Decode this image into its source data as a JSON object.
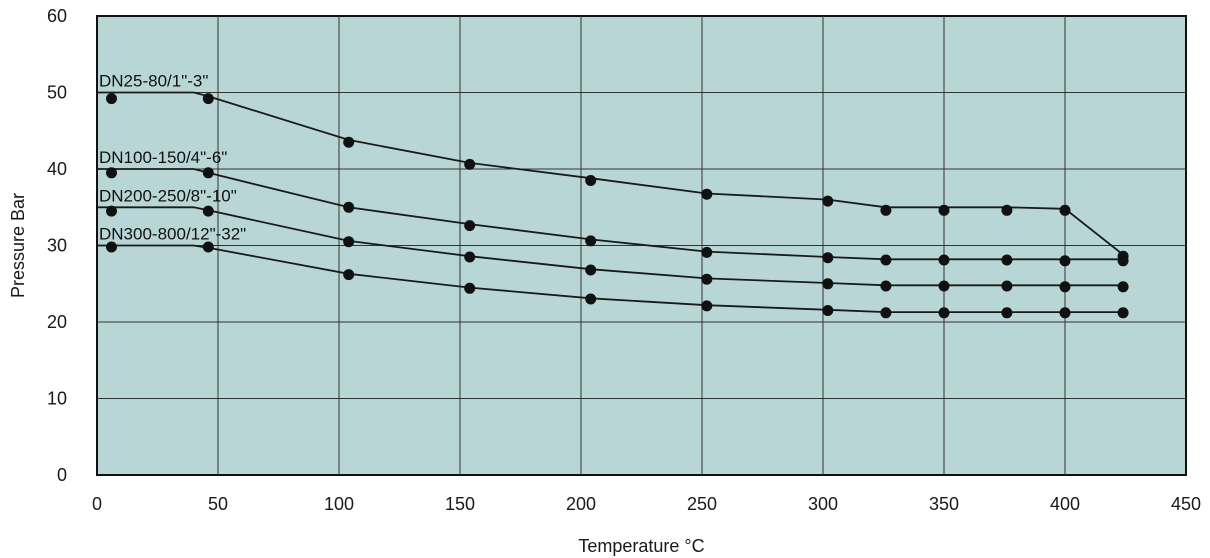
{
  "chart_data": {
    "type": "line",
    "title": "",
    "xlabel": "Temperature °C",
    "ylabel": "Pressure Bar",
    "xlim": [
      0,
      450
    ],
    "ylim": [
      0,
      60
    ],
    "xticks": [
      0,
      50,
      100,
      150,
      200,
      250,
      300,
      350,
      400,
      450
    ],
    "yticks": [
      0,
      10,
      20,
      30,
      40,
      50,
      60
    ],
    "grid": true,
    "plot_background": "#b8d6d6",
    "series": [
      {
        "name": "DN25-80/1\"-3\"",
        "line": [
          [
            0,
            50
          ],
          [
            40,
            50
          ],
          [
            46,
            49.5
          ],
          [
            104,
            43.8
          ],
          [
            154,
            40.8
          ],
          [
            204,
            38.8
          ],
          [
            252,
            36.8
          ],
          [
            302,
            36
          ],
          [
            326,
            35
          ],
          [
            350,
            35
          ],
          [
            376,
            35
          ],
          [
            400,
            34.8
          ],
          [
            424,
            28.8
          ]
        ],
        "points": [
          [
            6,
            49.2
          ],
          [
            46,
            49.2
          ],
          [
            104,
            43.5
          ],
          [
            154,
            40.6
          ],
          [
            204,
            38.5
          ],
          [
            252,
            36.7
          ],
          [
            302,
            35.8
          ],
          [
            326,
            34.6
          ],
          [
            350,
            34.6
          ],
          [
            376,
            34.6
          ],
          [
            400,
            34.6
          ],
          [
            424,
            28.6
          ]
        ]
      },
      {
        "name": "DN100-150/4\"-6\"",
        "line": [
          [
            0,
            40
          ],
          [
            40,
            40
          ],
          [
            46,
            39.5
          ],
          [
            104,
            35
          ],
          [
            154,
            32.8
          ],
          [
            204,
            30.8
          ],
          [
            252,
            29.2
          ],
          [
            302,
            28.5
          ],
          [
            326,
            28.2
          ],
          [
            350,
            28.2
          ],
          [
            376,
            28.2
          ],
          [
            400,
            28.2
          ],
          [
            424,
            28.2
          ]
        ],
        "points": [
          [
            6,
            39.5
          ],
          [
            46,
            39.5
          ],
          [
            104,
            35
          ],
          [
            154,
            32.6
          ],
          [
            204,
            30.6
          ],
          [
            252,
            29.1
          ],
          [
            302,
            28.4
          ],
          [
            326,
            28.1
          ],
          [
            350,
            28.1
          ],
          [
            376,
            28.1
          ],
          [
            400,
            28.0
          ],
          [
            424,
            28.0
          ]
        ]
      },
      {
        "name": "DN200-250/8\"-10\"",
        "line": [
          [
            0,
            35
          ],
          [
            40,
            35
          ],
          [
            46,
            34.6
          ],
          [
            104,
            30.6
          ],
          [
            154,
            28.6
          ],
          [
            204,
            26.9
          ],
          [
            252,
            25.7
          ],
          [
            302,
            25.1
          ],
          [
            326,
            24.8
          ],
          [
            350,
            24.8
          ],
          [
            376,
            24.8
          ],
          [
            400,
            24.8
          ],
          [
            424,
            24.8
          ]
        ],
        "points": [
          [
            6,
            34.5
          ],
          [
            46,
            34.5
          ],
          [
            104,
            30.5
          ],
          [
            154,
            28.5
          ],
          [
            204,
            26.8
          ],
          [
            252,
            25.6
          ],
          [
            302,
            25.0
          ],
          [
            326,
            24.7
          ],
          [
            350,
            24.7
          ],
          [
            376,
            24.7
          ],
          [
            400,
            24.6
          ],
          [
            424,
            24.6
          ]
        ]
      },
      {
        "name": "DN300-800/12\"-32\"",
        "line": [
          [
            0,
            30
          ],
          [
            40,
            30
          ],
          [
            46,
            29.7
          ],
          [
            104,
            26.3
          ],
          [
            154,
            24.5
          ],
          [
            204,
            23.1
          ],
          [
            252,
            22.2
          ],
          [
            302,
            21.6
          ],
          [
            326,
            21.3
          ],
          [
            350,
            21.3
          ],
          [
            376,
            21.3
          ],
          [
            400,
            21.3
          ],
          [
            424,
            21.3
          ]
        ],
        "points": [
          [
            6,
            29.8
          ],
          [
            46,
            29.8
          ],
          [
            104,
            26.2
          ],
          [
            154,
            24.4
          ],
          [
            204,
            23.0
          ],
          [
            252,
            22.1
          ],
          [
            302,
            21.5
          ],
          [
            326,
            21.2
          ],
          [
            350,
            21.2
          ],
          [
            376,
            21.2
          ],
          [
            400,
            21.2
          ],
          [
            424,
            21.2
          ]
        ]
      }
    ]
  }
}
